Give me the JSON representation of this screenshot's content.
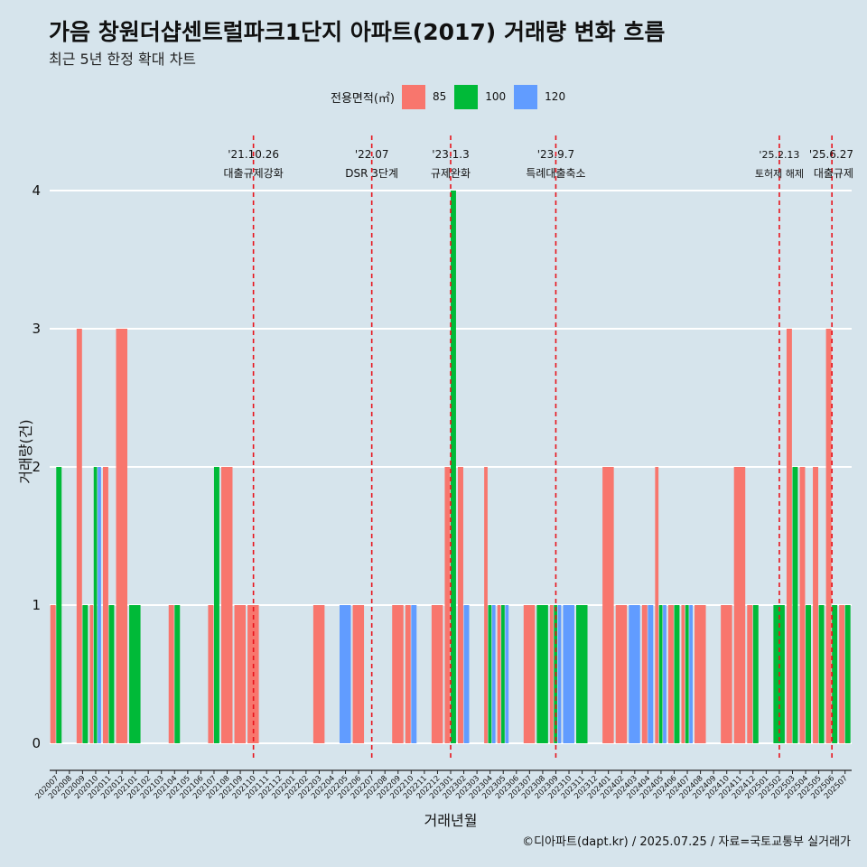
{
  "title": "가음 창원더샵센트럴파크1단지 아파트(2017) 거래량 변화 흐름",
  "subtitle": "최근 5년 한정 확대 차트",
  "caption": "©디아파트(dapt.kr) / 2025.07.25 / 자료=국토교통부 실거래가",
  "chart_data": {
    "type": "bar",
    "xlabel": "거래년월",
    "ylabel": "거래량(건)",
    "ylim": [
      0,
      4
    ],
    "yticks": [
      0,
      1,
      2,
      3,
      4
    ],
    "grid": true,
    "legend": {
      "title": "전용면적(㎡)",
      "placement": "top",
      "items": [
        {
          "label": "85",
          "color": "#f8766d"
        },
        {
          "label": "100",
          "color": "#00ba38"
        },
        {
          "label": "120",
          "color": "#619cff"
        }
      ]
    },
    "categories": [
      "202007",
      "202008",
      "202009",
      "202010",
      "202011",
      "202012",
      "202101",
      "202102",
      "202103",
      "202104",
      "202105",
      "202106",
      "202107",
      "202108",
      "202109",
      "202110",
      "202111",
      "202112",
      "202201",
      "202202",
      "202203",
      "202204",
      "202205",
      "202206",
      "202207",
      "202208",
      "202209",
      "202210",
      "202211",
      "202212",
      "202301",
      "202302",
      "202303",
      "202304",
      "202305",
      "202306",
      "202307",
      "202308",
      "202309",
      "202310",
      "202311",
      "202312",
      "202401",
      "202402",
      "202403",
      "202404",
      "202405",
      "202406",
      "202407",
      "202408",
      "202409",
      "202410",
      "202411",
      "202412",
      "202501",
      "202502",
      "202503",
      "202504",
      "202505",
      "202506",
      "202507"
    ],
    "series": [
      {
        "name": "85",
        "color": "#f8766d",
        "values": [
          1,
          0,
          3,
          1,
          2,
          3,
          0,
          0,
          0,
          1,
          0,
          0,
          1,
          2,
          1,
          1,
          0,
          0,
          0,
          0,
          1,
          0,
          0,
          1,
          0,
          0,
          1,
          1,
          0,
          1,
          2,
          2,
          0,
          2,
          1,
          0,
          1,
          0,
          1,
          0,
          0,
          0,
          2,
          1,
          0,
          1,
          2,
          1,
          1,
          1,
          0,
          1,
          2,
          1,
          0,
          0,
          3,
          2,
          2,
          3,
          1
        ]
      },
      {
        "name": "100",
        "color": "#00ba38",
        "values": [
          2,
          0,
          1,
          2,
          1,
          0,
          1,
          0,
          0,
          1,
          0,
          0,
          2,
          0,
          0,
          0,
          0,
          0,
          0,
          0,
          0,
          0,
          0,
          0,
          0,
          0,
          0,
          0,
          0,
          0,
          4,
          0,
          0,
          1,
          1,
          0,
          0,
          1,
          1,
          0,
          1,
          0,
          0,
          0,
          0,
          0,
          1,
          1,
          1,
          0,
          0,
          0,
          0,
          1,
          0,
          1,
          2,
          1,
          1,
          1,
          1
        ]
      },
      {
        "name": "120",
        "color": "#619cff",
        "values": [
          0,
          0,
          0,
          2,
          0,
          0,
          0,
          0,
          0,
          0,
          0,
          0,
          0,
          0,
          0,
          0,
          0,
          0,
          0,
          0,
          0,
          0,
          1,
          0,
          0,
          0,
          0,
          1,
          0,
          0,
          0,
          1,
          0,
          1,
          1,
          0,
          0,
          0,
          1,
          1,
          0,
          0,
          0,
          0,
          1,
          1,
          1,
          0,
          1,
          0,
          0,
          0,
          0,
          0,
          0,
          0,
          0,
          0,
          0,
          0,
          0
        ]
      }
    ],
    "events": [
      {
        "month": "202110",
        "date": "'21.10.26",
        "label": "대출규제강화"
      },
      {
        "month": "202207",
        "date": "'22.07",
        "label": "DSR 3단계"
      },
      {
        "month": "202301",
        "date": "'23.1.3",
        "label": "규제완화"
      },
      {
        "month": "202309",
        "date": "'23.9.7",
        "label": "특례대출축소"
      },
      {
        "month": "202502",
        "date": "'25.2.13",
        "label": "토허제 해제"
      },
      {
        "month": "202506",
        "date": "'25.6.27",
        "label": "대출규제"
      }
    ]
  }
}
